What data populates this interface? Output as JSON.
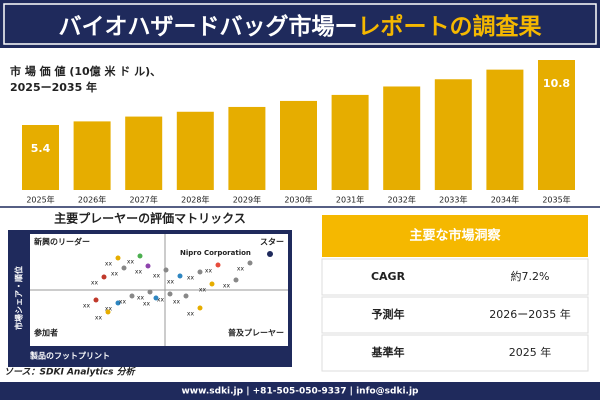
{
  "header": {
    "title_main": "バイオハザードバッグ市場ー",
    "title_accent": "レポートの調査果"
  },
  "chart_data": {
    "type": "bar",
    "subtitle_lines": [
      "市 場 価 値 (10億 米 ド ル)、",
      "2025ー2035 年"
    ],
    "categories": [
      "2025年",
      "2026年",
      "2027年",
      "2028年",
      "2029年",
      "2030年",
      "2031年",
      "2032年",
      "2033年",
      "2034年",
      "2035年"
    ],
    "values": [
      5.4,
      5.7,
      6.1,
      6.5,
      6.9,
      7.4,
      7.9,
      8.6,
      9.2,
      10.0,
      10.8
    ],
    "value_labels": [
      "5.4",
      null,
      null,
      null,
      null,
      null,
      null,
      null,
      null,
      null,
      "10.8"
    ],
    "color": "#e6ad00"
  },
  "matrix": {
    "title": "主要プレーヤーの評価マトリックス",
    "top_left": "新興のリーダー",
    "top_right": "スター",
    "bottom_left": "参加者",
    "bottom_right": "普及プレーヤー",
    "y_axis": "市場シェア・順位",
    "x_axis": "製品のフットプリント",
    "highlight": "Nipro Corporation",
    "players": [
      "xx",
      "xx",
      "xx",
      "xx",
      "xx",
      "xx",
      "xx",
      "xx",
      "xx",
      "xx",
      "xx",
      "xx",
      "xx",
      "xx",
      "xx",
      "xx",
      "xx",
      "xx",
      "xx",
      "xx",
      "xx"
    ]
  },
  "insights": {
    "title": "主要な市場洞察",
    "rows": [
      [
        "CAGR",
        "約7.2%"
      ],
      [
        "予測年",
        "2026ー2035 年"
      ],
      [
        "基準年",
        "2025 年"
      ]
    ]
  },
  "source": "ソース：SDKI Analytics 分析",
  "footer": "www.sdki.jp | +81-505-050-9337 | info@sdki.jp"
}
